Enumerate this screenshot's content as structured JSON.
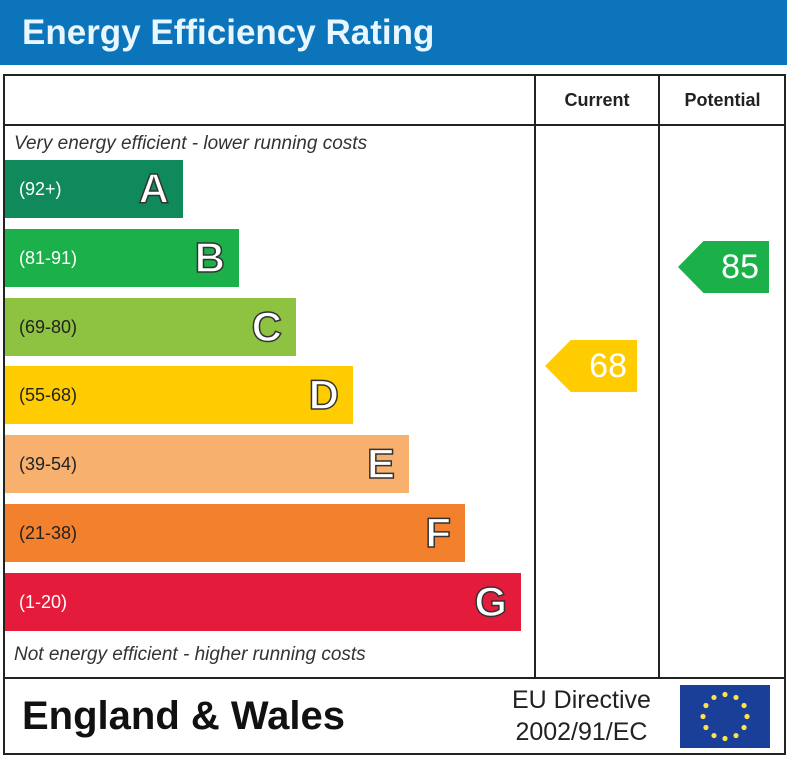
{
  "header": {
    "title": "Energy Efficiency Rating"
  },
  "columns": {
    "current": "Current",
    "potential": "Potential"
  },
  "notes": {
    "top": "Very energy efficient - lower running costs",
    "bottom": "Not energy efficient - higher running costs"
  },
  "chart_data": {
    "type": "bar",
    "categories": [
      "A",
      "B",
      "C",
      "D",
      "E",
      "F",
      "G"
    ],
    "ranges": [
      "(92+)",
      "(81-91)",
      "(69-80)",
      "(55-68)",
      "(39-54)",
      "(21-38)",
      "(1-20)"
    ],
    "colors": [
      "#108a5a",
      "#1bb04a",
      "#8dc340",
      "#ffcc02",
      "#f8b06f",
      "#f3802c",
      "#e41b3b"
    ],
    "current": {
      "value": 68,
      "band": "D",
      "label": "68",
      "color": "#ffcc02"
    },
    "potential": {
      "value": 85,
      "band": "B",
      "label": "85",
      "color": "#1bb04a"
    }
  },
  "footer": {
    "region": "England & Wales",
    "directive_line1": "EU Directive",
    "directive_line2": "2002/91/EC"
  },
  "flag_icon": "eu-flag-icon"
}
